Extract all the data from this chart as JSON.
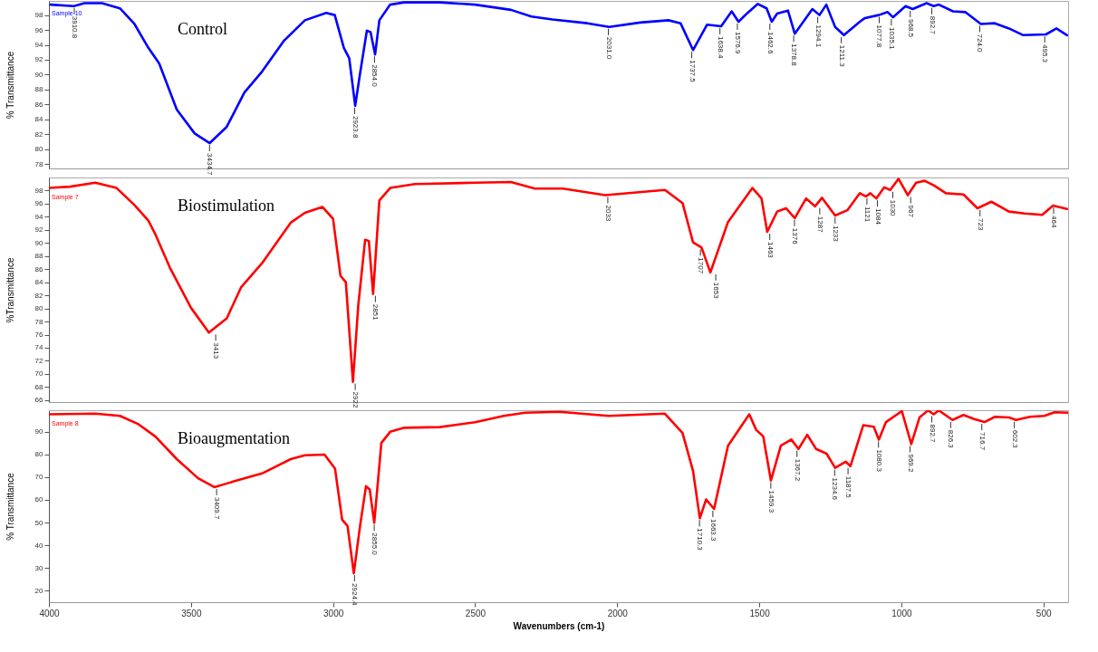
{
  "chart_data": [
    {
      "type": "line",
      "ylabel": "% Transmittance",
      "xlim": [
        4000,
        413
      ],
      "ylim": [
        77.4,
        99.9
      ],
      "yticks": [
        78,
        80,
        82,
        84,
        86,
        88,
        90,
        92,
        94,
        96,
        98
      ],
      "tick_labels": "y",
      "x": [
        3994,
        3912,
        3875,
        3813,
        3750,
        3699,
        3650,
        3612,
        3550,
        3487,
        3434,
        3374,
        3312,
        3250,
        3174,
        3099,
        3024,
        2994,
        2962,
        2943,
        2922,
        2906,
        2881,
        2868,
        2852,
        2837,
        2799,
        2750,
        2624,
        2500,
        2374,
        2302,
        2228,
        2105,
        2028,
        1919,
        1819,
        1777,
        1733,
        1684,
        1634,
        1597,
        1573,
        1541,
        1505,
        1474,
        1456,
        1437,
        1399,
        1375,
        1313,
        1288,
        1264,
        1233,
        1202,
        1146,
        1128,
        1079,
        1048,
        1029,
        985,
        960,
        911,
        886,
        868,
        818,
        775,
        720,
        671,
        621,
        571,
        491,
        454,
        417
      ],
      "series": [
        {
          "color": "#0000ff",
          "values": [
            99.4,
            99.2,
            99.6,
            99.6,
            98.9,
            96.8,
            93.6,
            91.5,
            85.3,
            82.1,
            80.8,
            83.0,
            87.6,
            90.4,
            94.5,
            97.3,
            98.3,
            98.0,
            93.6,
            92.2,
            85.8,
            89.9,
            95.9,
            95.7,
            92.7,
            97.3,
            99.4,
            99.7,
            99.7,
            99.4,
            98.7,
            97.8,
            97.4,
            96.9,
            96.4,
            97.0,
            97.3,
            96.9,
            93.3,
            96.7,
            96.5,
            98.5,
            97.1,
            98.3,
            99.5,
            98.9,
            97.1,
            98.2,
            98.6,
            95.5,
            98.8,
            98.0,
            99.4,
            96.4,
            95.3,
            97.1,
            97.6,
            98.0,
            98.4,
            97.7,
            99.2,
            98.8,
            99.6,
            99.2,
            99.4,
            98.5,
            98.4,
            96.8,
            96.9,
            96.2,
            95.3,
            95.4,
            96.2,
            95.3
          ]
        }
      ],
      "annotations": [
        "Control",
        "Sample 10",
        {
          "text": "3910.8",
          "x": 3910.8,
          "y": 99.2
        },
        {
          "text": "3434.7",
          "x": 3434.7,
          "y": 80.8
        },
        {
          "text": "2923.8",
          "x": 2923.8,
          "y": 85.8
        },
        {
          "text": "2854.0",
          "x": 2854.0,
          "y": 92.7
        },
        {
          "text": "2031.0",
          "x": 2031.0,
          "y": 96.4
        },
        {
          "text": "1737.5",
          "x": 1737.5,
          "y": 93.3
        },
        {
          "text": "1638.4",
          "x": 1638.4,
          "y": 96.5
        },
        {
          "text": "1576.9",
          "x": 1576.9,
          "y": 97.1
        },
        {
          "text": "1462.6",
          "x": 1462.6,
          "y": 97.1
        },
        {
          "text": "1378.8",
          "x": 1378.8,
          "y": 95.5
        },
        {
          "text": "1294.1",
          "x": 1294.1,
          "y": 98.0
        },
        {
          "text": "1211.3",
          "x": 1211.3,
          "y": 95.3
        },
        {
          "text": "1077.8",
          "x": 1077.8,
          "y": 98.0
        },
        {
          "text": "1035.1",
          "x": 1035.1,
          "y": 97.7
        },
        {
          "text": "968.5",
          "x": 968.5,
          "y": 98.8
        },
        {
          "text": "892.7",
          "x": 892.7,
          "y": 99.2
        },
        {
          "text": "724.0",
          "x": 724.0,
          "y": 96.8
        },
        {
          "text": "495.3",
          "x": 495.3,
          "y": 95.4
        }
      ]
    },
    {
      "type": "line",
      "ylabel": "%Transmittance",
      "xlim": [
        4000,
        413
      ],
      "ylim": [
        65.7,
        100
      ],
      "yticks": [
        66,
        68,
        70,
        72,
        74,
        76,
        78,
        80,
        82,
        84,
        86,
        88,
        90,
        92,
        94,
        96,
        98
      ],
      "tick_labels": "y",
      "x": [
        4000,
        3925,
        3837,
        3762,
        3699,
        3650,
        3625,
        3575,
        3500,
        3437,
        3374,
        3324,
        3250,
        3149,
        3099,
        3037,
        3000,
        2974,
        2955,
        2930,
        2911,
        2887,
        2874,
        2859,
        2837,
        2799,
        2712,
        2500,
        2374,
        2290,
        2191,
        2042,
        1832,
        1770,
        1733,
        1703,
        1672,
        1610,
        1524,
        1492,
        1472,
        1437,
        1406,
        1375,
        1335,
        1304,
        1279,
        1233,
        1190,
        1146,
        1125,
        1109,
        1088,
        1060,
        1039,
        1010,
        977,
        948,
        918,
        886,
        843,
        781,
        732,
        683,
        621,
        566,
        504,
        466,
        417
      ],
      "series": [
        {
          "color": "#ff0000",
          "values": [
            98.4,
            98.6,
            99.2,
            98.4,
            95.8,
            93.4,
            91.3,
            86.3,
            80.1,
            76.3,
            78.5,
            83.2,
            86.9,
            93.1,
            94.6,
            95.5,
            93.7,
            85.0,
            84.0,
            68.8,
            80.6,
            90.5,
            90.3,
            82.2,
            96.5,
            98.4,
            99.0,
            99.2,
            99.3,
            98.3,
            98.3,
            97.3,
            98.1,
            96.1,
            90.1,
            89.3,
            85.5,
            93.2,
            98.4,
            96.8,
            91.7,
            94.8,
            95.3,
            93.8,
            96.8,
            95.6,
            96.9,
            94.2,
            95.0,
            97.6,
            97.1,
            97.6,
            96.8,
            98.5,
            98.1,
            99.8,
            97.3,
            99.2,
            99.5,
            98.8,
            97.6,
            97.4,
            95.3,
            96.3,
            94.8,
            94.5,
            94.3,
            95.7,
            95.2
          ]
        }
      ],
      "annotations": [
        "Biostimulation",
        "Sample 7",
        {
          "text": "3413",
          "x": 3413,
          "y": 76.3
        },
        {
          "text": "2922",
          "x": 2922,
          "y": 68.8
        },
        {
          "text": "2851",
          "x": 2851,
          "y": 82.2
        },
        {
          "text": "2033",
          "x": 2033,
          "y": 97.3
        },
        {
          "text": "1707",
          "x": 1707,
          "y": 89.3
        },
        {
          "text": "1653",
          "x": 1653,
          "y": 85.5
        },
        {
          "text": "1463",
          "x": 1463,
          "y": 91.7
        },
        {
          "text": "1376",
          "x": 1376,
          "y": 93.8
        },
        {
          "text": "1287",
          "x": 1287,
          "y": 95.6
        },
        {
          "text": "1233",
          "x": 1233,
          "y": 94.2
        },
        {
          "text": "1121",
          "x": 1121,
          "y": 97.1
        },
        {
          "text": "1084",
          "x": 1084,
          "y": 96.8
        },
        {
          "text": "1030",
          "x": 1030,
          "y": 98.1
        },
        {
          "text": "967",
          "x": 967,
          "y": 97.3
        },
        {
          "text": "723",
          "x": 723,
          "y": 95.3
        },
        {
          "text": "464",
          "x": 464,
          "y": 95.7
        }
      ]
    },
    {
      "type": "line",
      "ylabel": "% Transmittance",
      "xlabel": "Wavenumbers (cm-1)",
      "xlim": [
        4000,
        413
      ],
      "ylim": [
        15,
        99.4
      ],
      "yticks": [
        20,
        30,
        40,
        50,
        60,
        70,
        80,
        90
      ],
      "xticks": [
        4000,
        3500,
        3000,
        2500,
        2000,
        1500,
        1000,
        500
      ],
      "x": [
        4000,
        3837,
        3750,
        3687,
        3625,
        3550,
        3475,
        3418,
        3349,
        3250,
        3149,
        3099,
        3030,
        2993,
        2968,
        2949,
        2927,
        2905,
        2884,
        2871,
        2855,
        2830,
        2799,
        2749,
        2624,
        2500,
        2399,
        2324,
        2203,
        2030,
        1832,
        1770,
        1733,
        1709,
        1687,
        1659,
        1610,
        1535,
        1511,
        1486,
        1459,
        1424,
        1387,
        1362,
        1331,
        1300,
        1263,
        1233,
        1196,
        1179,
        1134,
        1097,
        1079,
        1054,
        998,
        965,
        936,
        906,
        886,
        868,
        820,
        781,
        744,
        707,
        670,
        621,
        596,
        547,
        497,
        460,
        413
      ],
      "series": [
        {
          "color": "#ff0000",
          "values": [
            97.6,
            97.9,
            96.9,
            93.4,
            87.8,
            77.9,
            69.5,
            65.6,
            68.1,
            71.6,
            77.9,
            79.6,
            79.9,
            73.7,
            51.3,
            48.5,
            27.7,
            48.5,
            66.0,
            64.6,
            49.9,
            85.0,
            89.9,
            91.7,
            92.0,
            94.1,
            96.9,
            98.3,
            98.7,
            96.9,
            97.9,
            89.4,
            72.7,
            51.9,
            60.2,
            56.0,
            83.8,
            97.6,
            90.8,
            87.9,
            68.5,
            83.8,
            86.5,
            82.4,
            88.6,
            82.4,
            80.3,
            74.1,
            76.8,
            74.8,
            92.8,
            92.1,
            86.5,
            94.2,
            99.0,
            84.5,
            96.2,
            99.3,
            97.6,
            99.3,
            95.1,
            97.3,
            95.5,
            94.2,
            96.5,
            96.2,
            95.1,
            96.5,
            96.9,
            98.5,
            98.3
          ]
        }
      ],
      "annotations": [
        "Bioaugmentation",
        "Sample 8",
        {
          "text": "3409.7",
          "x": 3409.7,
          "y": 65.6
        },
        {
          "text": "2924.4",
          "x": 2924.4,
          "y": 27.7
        },
        {
          "text": "2855.0",
          "x": 2855.0,
          "y": 49.9
        },
        {
          "text": "1710.3",
          "x": 1710.3,
          "y": 51.9
        },
        {
          "text": "1663.3",
          "x": 1663.3,
          "y": 56.0
        },
        {
          "text": "1459.3",
          "x": 1459.3,
          "y": 68.5
        },
        {
          "text": "1367.2",
          "x": 1367.2,
          "y": 82.4
        },
        {
          "text": "1234.6",
          "x": 1234.6,
          "y": 74.1
        },
        {
          "text": "1187.5",
          "x": 1187.5,
          "y": 74.8
        },
        {
          "text": "1080.3",
          "x": 1080.3,
          "y": 86.5
        },
        {
          "text": "969.2",
          "x": 969.2,
          "y": 84.5
        },
        {
          "text": "892.7",
          "x": 892.7,
          "y": 97.6
        },
        {
          "text": "826.3",
          "x": 826.3,
          "y": 95.1
        },
        {
          "text": "716.7",
          "x": 716.7,
          "y": 94.2
        },
        {
          "text": "602.3",
          "x": 602.3,
          "y": 95.1
        }
      ]
    }
  ]
}
